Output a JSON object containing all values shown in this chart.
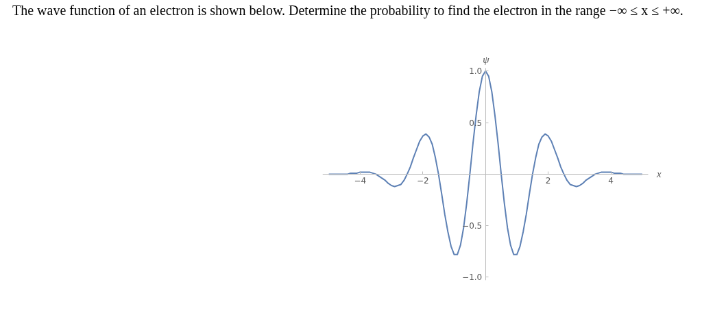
{
  "chart_data": {
    "type": "line",
    "title": "The wave function of an electron is shown below. Determine the probability to find the electron in the range −∞ ≤ x ≤ +∞.",
    "xlabel": "x",
    "ylabel": "ψ",
    "x": [
      -5.0,
      -4.9,
      -4.8,
      -4.7,
      -4.6,
      -4.5,
      -4.4,
      -4.3,
      -4.2,
      -4.1,
      -4.0,
      -3.9,
      -3.8,
      -3.7,
      -3.6,
      -3.5,
      -3.4,
      -3.3,
      -3.2,
      -3.1,
      -3.0,
      -2.9,
      -2.8,
      -2.7,
      -2.6,
      -2.5,
      -2.4,
      -2.3,
      -2.2,
      -2.1,
      -2.0,
      -1.9,
      -1.8,
      -1.7,
      -1.6,
      -1.5,
      -1.4,
      -1.3,
      -1.2,
      -1.1,
      -1.0,
      -0.9,
      -0.8,
      -0.7,
      -0.6,
      -0.5,
      -0.4,
      -0.3,
      -0.2,
      -0.1,
      0.0,
      0.1,
      0.2,
      0.3,
      0.4,
      0.5,
      0.6,
      0.7,
      0.8,
      0.9,
      1.0,
      1.1,
      1.2,
      1.3,
      1.4,
      1.5,
      1.6,
      1.7,
      1.8,
      1.9,
      2.0,
      2.1,
      2.2,
      2.3,
      2.4,
      2.5,
      2.6,
      2.7,
      2.8,
      2.9,
      3.0,
      3.1,
      3.2,
      3.3,
      3.4,
      3.5,
      3.6,
      3.7,
      3.8,
      3.9,
      4.0,
      4.1,
      4.2,
      4.3,
      4.4,
      4.5,
      4.6,
      4.7,
      4.8,
      4.9,
      5.0
    ],
    "series": [
      {
        "color": "#5e81b5",
        "values": [
          0.0,
          0.0,
          0.0,
          0.0,
          0.0,
          0.0,
          0.0,
          0.01,
          0.01,
          0.01,
          0.02,
          0.02,
          0.02,
          0.02,
          0.01,
          0.0,
          -0.02,
          -0.04,
          -0.06,
          -0.09,
          -0.11,
          -0.12,
          -0.11,
          -0.1,
          -0.06,
          0.0,
          0.07,
          0.16,
          0.24,
          0.32,
          0.37,
          0.39,
          0.36,
          0.29,
          0.16,
          0.0,
          -0.19,
          -0.39,
          -0.56,
          -0.7,
          -0.78,
          -0.78,
          -0.69,
          -0.52,
          -0.28,
          0.0,
          0.3,
          0.57,
          0.8,
          0.95,
          1.0,
          0.95,
          0.8,
          0.57,
          0.3,
          0.0,
          -0.28,
          -0.52,
          -0.69,
          -0.78,
          -0.78,
          -0.7,
          -0.56,
          -0.39,
          -0.19,
          0.0,
          0.16,
          0.29,
          0.36,
          0.39,
          0.37,
          0.32,
          0.24,
          0.16,
          0.07,
          0.0,
          -0.06,
          -0.1,
          -0.11,
          -0.12,
          -0.11,
          -0.09,
          -0.06,
          -0.04,
          -0.02,
          0.0,
          0.01,
          0.02,
          0.02,
          0.02,
          0.02,
          0.01,
          0.01,
          0.01,
          0.0,
          0.0,
          0.0,
          0.0,
          0.0,
          0.0,
          0.0
        ]
      }
    ],
    "xlim": [
      -5.2,
      5.2
    ],
    "ylim": [
      -1.03,
      1.03
    ],
    "xticks": [
      -4,
      -2,
      2,
      4
    ],
    "yticks": [
      {
        "value": -1.0,
        "label": "−1.0"
      },
      {
        "value": -0.5,
        "label": "−0.5"
      },
      0.5,
      {
        "value": 1.0,
        "label": "1.0"
      }
    ],
    "grid": false
  }
}
